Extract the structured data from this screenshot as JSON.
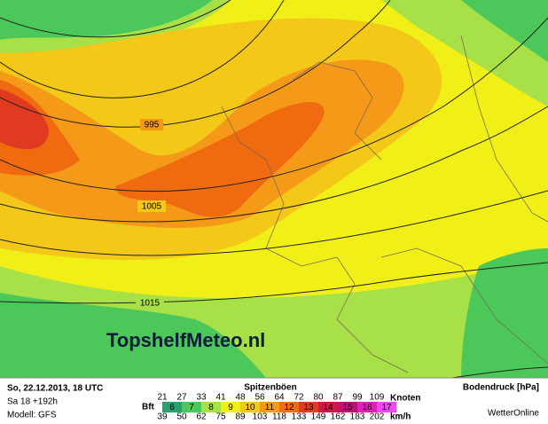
{
  "map": {
    "isobars": [
      "995",
      "1005",
      "1015"
    ],
    "watermark": "TopshelfMeteo.nl"
  },
  "footer": {
    "date": "So, 22.12.2013, 18 UTC",
    "run": "Sa 18 +192h",
    "model": "Modell: GFS",
    "legend": {
      "title": "Spitzenböen",
      "knots_label": "Knoten",
      "knots": [
        21,
        27,
        33,
        41,
        48,
        56,
        64,
        72,
        80,
        87,
        99,
        109
      ],
      "bft_label": "Bft",
      "bft": [
        {
          "value": 6,
          "color": "#2aa070"
        },
        {
          "value": 7,
          "color": "#4cc85a"
        },
        {
          "value": 8,
          "color": "#a8e048"
        },
        {
          "value": 9,
          "color": "#f0f018"
        },
        {
          "value": 10,
          "color": "#f4c818"
        },
        {
          "value": 11,
          "color": "#f49a18"
        },
        {
          "value": 12,
          "color": "#f06a10"
        },
        {
          "value": 13,
          "color": "#e03a20"
        },
        {
          "value": 14,
          "color": "#d01848"
        },
        {
          "value": 15,
          "color": "#c01078"
        },
        {
          "value": 16,
          "color": "#e020b8"
        },
        {
          "value": 17,
          "color": "#f048f0"
        }
      ],
      "kmh_label": "km/h",
      "kmh": [
        39,
        50,
        62,
        75,
        89,
        103,
        118,
        133,
        149,
        162,
        183,
        202
      ]
    },
    "pressure": "Bodendruck [hPa]",
    "source": "WetterOnline"
  }
}
